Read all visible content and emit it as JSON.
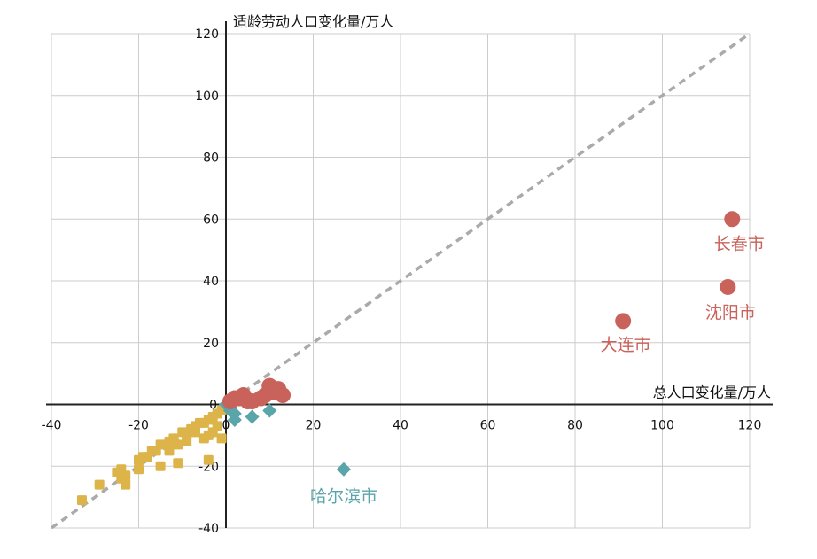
{
  "chart_data": {
    "type": "scatter",
    "xlabel": "总人口变化量/万人",
    "ylabel": "适龄劳动人口变化量/万人",
    "xlim": [
      -40,
      120
    ],
    "ylim": [
      -40,
      120
    ],
    "x_ticks": [
      "-40",
      "-20",
      "0",
      "20",
      "40",
      "60",
      "80",
      "100",
      "120"
    ],
    "y_ticks": [
      "-40",
      "-20",
      "0",
      "20",
      "40",
      "60",
      "80",
      "100",
      "120"
    ],
    "grid": true,
    "reference_line": "y = x (dashed, gray)",
    "colors": {
      "red": "#c8625a",
      "teal": "#5aa5aa",
      "gold": "#dcb449",
      "reference": "#aaaaaa",
      "grid": "#cccccc"
    },
    "series": [
      {
        "marker": "circle",
        "color": "#c8625a",
        "points": [
          {
            "x": 116,
            "y": 60,
            "label": "长春市"
          },
          {
            "x": 115,
            "y": 38,
            "label": "沈阳市"
          },
          {
            "x": 91,
            "y": 27,
            "label": "大连市"
          },
          {
            "x": 1,
            "y": 1
          },
          {
            "x": 2,
            "y": 2
          },
          {
            "x": 3,
            "y": 2
          },
          {
            "x": 4,
            "y": 3
          },
          {
            "x": 6,
            "y": 1
          },
          {
            "x": 8,
            "y": 2
          },
          {
            "x": 10,
            "y": 6
          },
          {
            "x": 11,
            "y": 4
          },
          {
            "x": 12,
            "y": 5
          },
          {
            "x": 13,
            "y": 3
          },
          {
            "x": 9,
            "y": 3
          },
          {
            "x": 5,
            "y": 1
          }
        ]
      },
      {
        "marker": "diamond",
        "color": "#5aa5aa",
        "points": [
          {
            "x": 27,
            "y": -21,
            "label": "哈尔滨市"
          },
          {
            "x": 10,
            "y": -2
          },
          {
            "x": 6,
            "y": -4
          },
          {
            "x": 2,
            "y": -5
          },
          {
            "x": 1,
            "y": -2
          },
          {
            "x": 0,
            "y": 0
          },
          {
            "x": 1,
            "y": -1
          },
          {
            "x": 2,
            "y": -3
          }
        ]
      },
      {
        "marker": "square",
        "color": "#dcb449",
        "points": [
          {
            "x": -33,
            "y": -31
          },
          {
            "x": -29,
            "y": -26
          },
          {
            "x": -25,
            "y": -22
          },
          {
            "x": -24,
            "y": -21
          },
          {
            "x": -23,
            "y": -26
          },
          {
            "x": -23,
            "y": -23
          },
          {
            "x": -24,
            "y": -24
          },
          {
            "x": -20,
            "y": -21
          },
          {
            "x": -20,
            "y": -18
          },
          {
            "x": -19,
            "y": -17
          },
          {
            "x": -18,
            "y": -17
          },
          {
            "x": -17,
            "y": -15
          },
          {
            "x": -16,
            "y": -15
          },
          {
            "x": -15,
            "y": -13
          },
          {
            "x": -15,
            "y": -20
          },
          {
            "x": -13,
            "y": -12
          },
          {
            "x": -13,
            "y": -15
          },
          {
            "x": -12,
            "y": -11
          },
          {
            "x": -11,
            "y": -13
          },
          {
            "x": -11,
            "y": -19
          },
          {
            "x": -10,
            "y": -9
          },
          {
            "x": -9,
            "y": -12
          },
          {
            "x": -9,
            "y": -10
          },
          {
            "x": -8,
            "y": -8
          },
          {
            "x": -7,
            "y": -9
          },
          {
            "x": -7,
            "y": -7
          },
          {
            "x": -6,
            "y": -6
          },
          {
            "x": -5,
            "y": -6
          },
          {
            "x": -5,
            "y": -11
          },
          {
            "x": -4,
            "y": -10
          },
          {
            "x": -4,
            "y": -5
          },
          {
            "x": -4,
            "y": -18
          },
          {
            "x": -3,
            "y": -4
          },
          {
            "x": -3,
            "y": -9
          },
          {
            "x": -2,
            "y": -3
          },
          {
            "x": -2,
            "y": -7
          },
          {
            "x": -1,
            "y": -2
          },
          {
            "x": -1,
            "y": -11
          },
          {
            "x": 0,
            "y": -1
          }
        ]
      }
    ]
  }
}
